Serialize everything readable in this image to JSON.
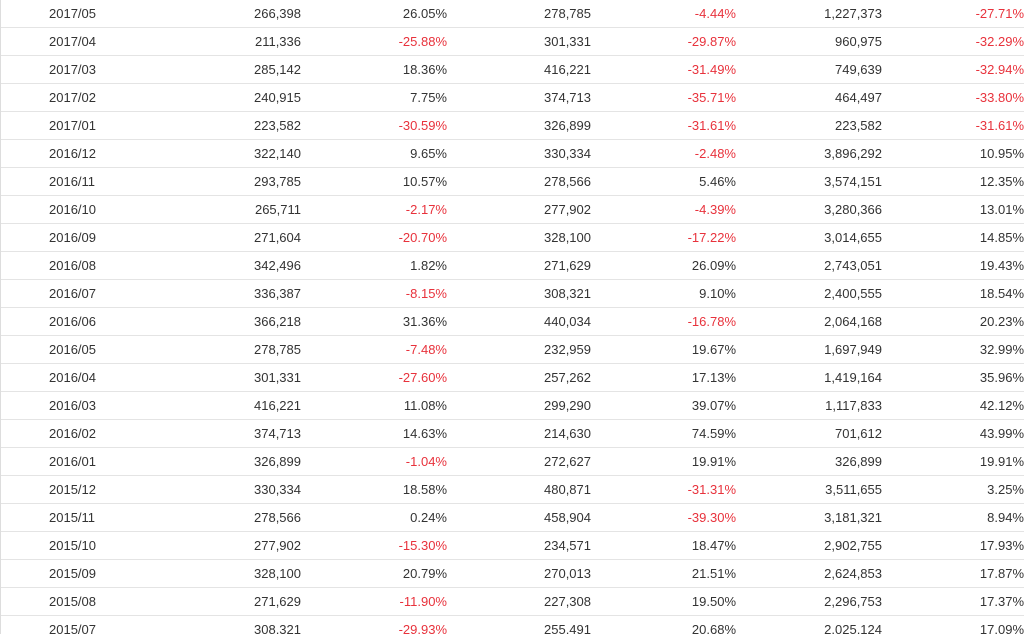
{
  "colors": {
    "negative": "#e8323c",
    "text": "#333333",
    "row_border": "#e4e4e4"
  },
  "rows": [
    [
      "2017/05",
      "266,398",
      "26.05%",
      "278,785",
      "-4.44%",
      "1,227,373",
      "-27.71%"
    ],
    [
      "2017/04",
      "211,336",
      "-25.88%",
      "301,331",
      "-29.87%",
      "960,975",
      "-32.29%"
    ],
    [
      "2017/03",
      "285,142",
      "18.36%",
      "416,221",
      "-31.49%",
      "749,639",
      "-32.94%"
    ],
    [
      "2017/02",
      "240,915",
      "7.75%",
      "374,713",
      "-35.71%",
      "464,497",
      "-33.80%"
    ],
    [
      "2017/01",
      "223,582",
      "-30.59%",
      "326,899",
      "-31.61%",
      "223,582",
      "-31.61%"
    ],
    [
      "2016/12",
      "322,140",
      "9.65%",
      "330,334",
      "-2.48%",
      "3,896,292",
      "10.95%"
    ],
    [
      "2016/11",
      "293,785",
      "10.57%",
      "278,566",
      "5.46%",
      "3,574,151",
      "12.35%"
    ],
    [
      "2016/10",
      "265,711",
      "-2.17%",
      "277,902",
      "-4.39%",
      "3,280,366",
      "13.01%"
    ],
    [
      "2016/09",
      "271,604",
      "-20.70%",
      "328,100",
      "-17.22%",
      "3,014,655",
      "14.85%"
    ],
    [
      "2016/08",
      "342,496",
      "1.82%",
      "271,629",
      "26.09%",
      "2,743,051",
      "19.43%"
    ],
    [
      "2016/07",
      "336,387",
      "-8.15%",
      "308,321",
      "9.10%",
      "2,400,555",
      "18.54%"
    ],
    [
      "2016/06",
      "366,218",
      "31.36%",
      "440,034",
      "-16.78%",
      "2,064,168",
      "20.23%"
    ],
    [
      "2016/05",
      "278,785",
      "-7.48%",
      "232,959",
      "19.67%",
      "1,697,949",
      "32.99%"
    ],
    [
      "2016/04",
      "301,331",
      "-27.60%",
      "257,262",
      "17.13%",
      "1,419,164",
      "35.96%"
    ],
    [
      "2016/03",
      "416,221",
      "11.08%",
      "299,290",
      "39.07%",
      "1,117,833",
      "42.12%"
    ],
    [
      "2016/02",
      "374,713",
      "14.63%",
      "214,630",
      "74.59%",
      "701,612",
      "43.99%"
    ],
    [
      "2016/01",
      "326,899",
      "-1.04%",
      "272,627",
      "19.91%",
      "326,899",
      "19.91%"
    ],
    [
      "2015/12",
      "330,334",
      "18.58%",
      "480,871",
      "-31.31%",
      "3,511,655",
      "3.25%"
    ],
    [
      "2015/11",
      "278,566",
      "0.24%",
      "458,904",
      "-39.30%",
      "3,181,321",
      "8.94%"
    ],
    [
      "2015/10",
      "277,902",
      "-15.30%",
      "234,571",
      "18.47%",
      "2,902,755",
      "17.93%"
    ],
    [
      "2015/09",
      "328,100",
      "20.79%",
      "270,013",
      "21.51%",
      "2,624,853",
      "17.87%"
    ],
    [
      "2015/08",
      "271,629",
      "-11.90%",
      "227,308",
      "19.50%",
      "2,296,753",
      "17.37%"
    ],
    [
      "2015/07",
      "308,321",
      "-29.93%",
      "255,491",
      "20.68%",
      "2,025,124",
      "17.09%"
    ]
  ]
}
